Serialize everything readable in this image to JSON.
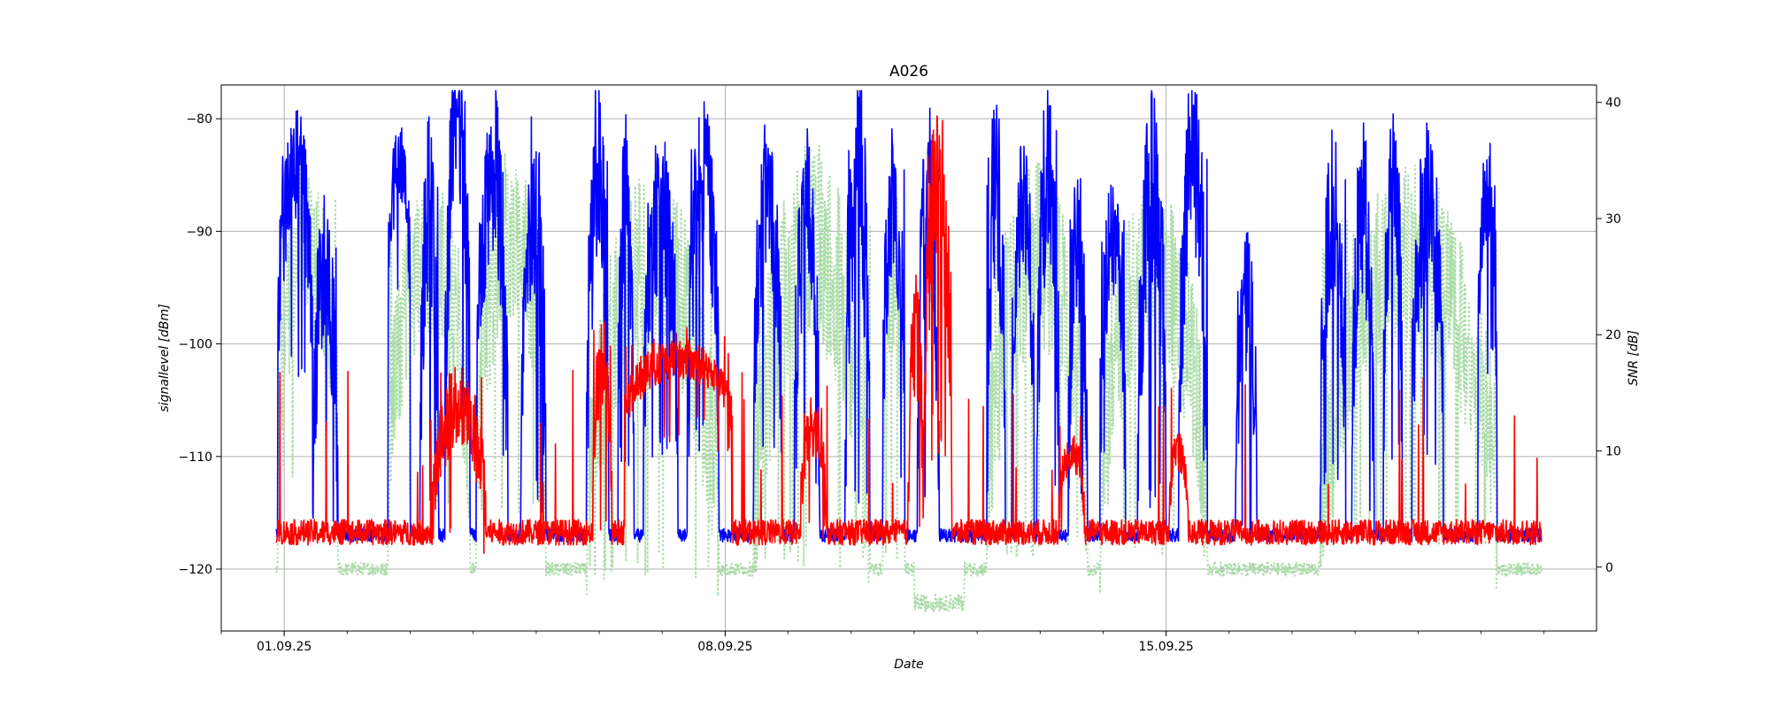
{
  "chart_data": {
    "type": "line",
    "title": "A026",
    "xlabel": "Date",
    "ylabel": "signallevel [dBm]",
    "y2label": "SNR [dB]",
    "x_start": "2025-08-31T21:00",
    "x_end": "2025-09-20T23:00",
    "xlim": [
      "2025-08-31T00:00",
      "2025-09-21T20:00"
    ],
    "x_ticks": [
      {
        "date": "2025-09-01",
        "label": "01.09.25"
      },
      {
        "date": "2025-09-08",
        "label": "08.09.25"
      },
      {
        "date": "2025-09-15",
        "label": "15.09.25"
      }
    ],
    "ylim": [
      -125.5,
      -77
    ],
    "y_ticks": [
      -80,
      -90,
      -100,
      -110,
      -120
    ],
    "y_tick_labels": [
      "−80",
      "−90",
      "−100",
      "−110",
      "−120"
    ],
    "y2lim": [
      -5.5,
      41.5
    ],
    "y2_ticks": [
      40,
      30,
      20,
      10,
      0
    ],
    "y2_tick_labels": [
      "40",
      "30",
      "20",
      "10",
      "0"
    ],
    "grid": true,
    "series": [
      {
        "axis": "left",
        "color": "#0000ff",
        "style": "solid",
        "bursts": [
          {
            "start": -0.1,
            "end": 0.45,
            "peak": -84,
            "low": -100
          },
          {
            "start": 0.45,
            "end": 0.85,
            "peak": -93,
            "low": -114
          },
          {
            "start": 1.65,
            "end": 2.0,
            "peak": -84,
            "low": -95
          },
          {
            "start": 2.15,
            "end": 2.45,
            "peak": -87,
            "low": -112
          },
          {
            "start": 2.55,
            "end": 2.95,
            "peak": -80,
            "low": -105
          },
          {
            "start": 3.05,
            "end": 3.55,
            "peak": -84,
            "low": -108
          },
          {
            "start": 3.75,
            "end": 4.15,
            "peak": -87,
            "low": -112
          },
          {
            "start": 4.8,
            "end": 5.15,
            "peak": -85,
            "low": -113
          },
          {
            "start": 5.3,
            "end": 5.55,
            "peak": -86,
            "low": -108
          },
          {
            "start": 5.7,
            "end": 6.25,
            "peak": -88,
            "low": -108
          },
          {
            "start": 6.4,
            "end": 6.9,
            "peak": -85,
            "low": -107
          },
          {
            "start": 7.45,
            "end": 7.9,
            "peak": -87,
            "low": -108
          },
          {
            "start": 8.1,
            "end": 8.5,
            "peak": -88,
            "low": -110
          },
          {
            "start": 8.9,
            "end": 9.3,
            "peak": -84,
            "low": -112
          },
          {
            "start": 9.5,
            "end": 9.85,
            "peak": -87,
            "low": -109
          },
          {
            "start": 10.05,
            "end": 10.4,
            "peak": -87,
            "low": -113
          },
          {
            "start": 11.15,
            "end": 11.45,
            "peak": -86,
            "low": -112
          },
          {
            "start": 11.55,
            "end": 11.9,
            "peak": -88,
            "low": -106
          },
          {
            "start": 11.95,
            "end": 12.3,
            "peak": -84,
            "low": -110
          },
          {
            "start": 12.45,
            "end": 12.75,
            "peak": -91,
            "low": -112
          },
          {
            "start": 12.95,
            "end": 13.35,
            "peak": -91,
            "low": -109
          },
          {
            "start": 13.55,
            "end": 14.0,
            "peak": -86,
            "low": -112
          },
          {
            "start": 14.2,
            "end": 14.65,
            "peak": -84,
            "low": -110
          },
          {
            "start": 15.1,
            "end": 15.45,
            "peak": -96,
            "low": -115
          },
          {
            "start": 16.45,
            "end": 16.85,
            "peak": -88,
            "low": -110
          },
          {
            "start": 16.95,
            "end": 17.3,
            "peak": -88,
            "low": -112
          },
          {
            "start": 17.45,
            "end": 17.75,
            "peak": -85,
            "low": -108
          },
          {
            "start": 17.9,
            "end": 18.4,
            "peak": -87,
            "low": -108
          },
          {
            "start": 18.95,
            "end": 19.25,
            "peak": -86,
            "low": -100
          }
        ],
        "base": -117
      },
      {
        "axis": "right",
        "color": "#ff0000",
        "style": "solid",
        "bursts": [
          {
            "start": 2.35,
            "end": 3.2,
            "peak": 14,
            "low": 4
          },
          {
            "start": 4.9,
            "end": 5.2,
            "peak": 18,
            "low": 6
          },
          {
            "start": 5.4,
            "end": 7.1,
            "peak": 18,
            "low": 13
          },
          {
            "start": 8.2,
            "end": 8.6,
            "peak": 12,
            "low": 5
          },
          {
            "start": 9.9,
            "end": 10.15,
            "peak": 20,
            "low": 5
          },
          {
            "start": 10.15,
            "end": 10.6,
            "peak": 33,
            "low": 12
          },
          {
            "start": 12.3,
            "end": 12.7,
            "peak": 10,
            "low": 5
          },
          {
            "start": 14.05,
            "end": 14.35,
            "peak": 10,
            "low": 5
          }
        ],
        "base": 3
      },
      {
        "axis": "left",
        "color": "#a9dba6",
        "style": "dotted",
        "bursts": [
          {
            "start": -0.1,
            "end": 0.85,
            "peak": -90,
            "low": -110
          },
          {
            "start": 1.65,
            "end": 2.95,
            "peak": -92,
            "low": -112
          },
          {
            "start": 3.05,
            "end": 4.15,
            "peak": -90,
            "low": -112
          },
          {
            "start": 4.8,
            "end": 6.9,
            "peak": -93,
            "low": -118
          },
          {
            "start": 7.45,
            "end": 9.3,
            "peak": -91,
            "low": -117
          },
          {
            "start": 9.5,
            "end": 9.85,
            "peak": -93,
            "low": -117
          },
          {
            "start": 11.15,
            "end": 12.75,
            "peak": -92,
            "low": -116
          },
          {
            "start": 12.95,
            "end": 14.65,
            "peak": -93,
            "low": -116
          },
          {
            "start": 16.45,
            "end": 19.25,
            "peak": -92,
            "low": -115
          }
        ],
        "base": -120,
        "dip": {
          "start": 10.0,
          "end": 10.8,
          "value": -123
        }
      }
    ]
  }
}
